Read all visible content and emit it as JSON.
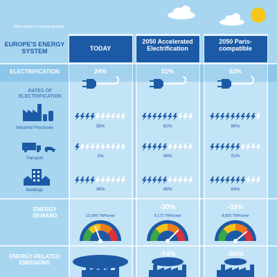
{
  "header": {
    "caption": "Main results of scenario analysis",
    "title": "EUROPE'S ENERGY SYSTEM"
  },
  "columns": [
    "TODAY",
    "2050 Accelerated Electrification",
    "2050 Paris-compatible"
  ],
  "electrification": {
    "label": "ELECTRIFICATION",
    "values": [
      "24%",
      "51%",
      "62%"
    ]
  },
  "rates": {
    "label": "RATES OF ELECTRIFICATION",
    "rows": [
      {
        "label": "Industrial Processes",
        "values": [
          "36%",
          "62%",
          "86%"
        ]
      },
      {
        "label": "Transport",
        "values": [
          "1%",
          "48%",
          "51%"
        ]
      },
      {
        "label": "Buildings",
        "values": [
          "36%",
          "48%",
          "64%"
        ]
      }
    ]
  },
  "demand": {
    "label": "ENERGY DEMAND",
    "values": [
      "13,098 TWh/year",
      "9,173 TWh/year",
      "8,820 TWh/year"
    ],
    "changes_2050": [
      "-30%",
      "-33%"
    ]
  },
  "emissions": {
    "label": "ENERGY-RELATED EMISSIONS",
    "changes_2050": [
      "-74%",
      "-90%"
    ]
  }
}
